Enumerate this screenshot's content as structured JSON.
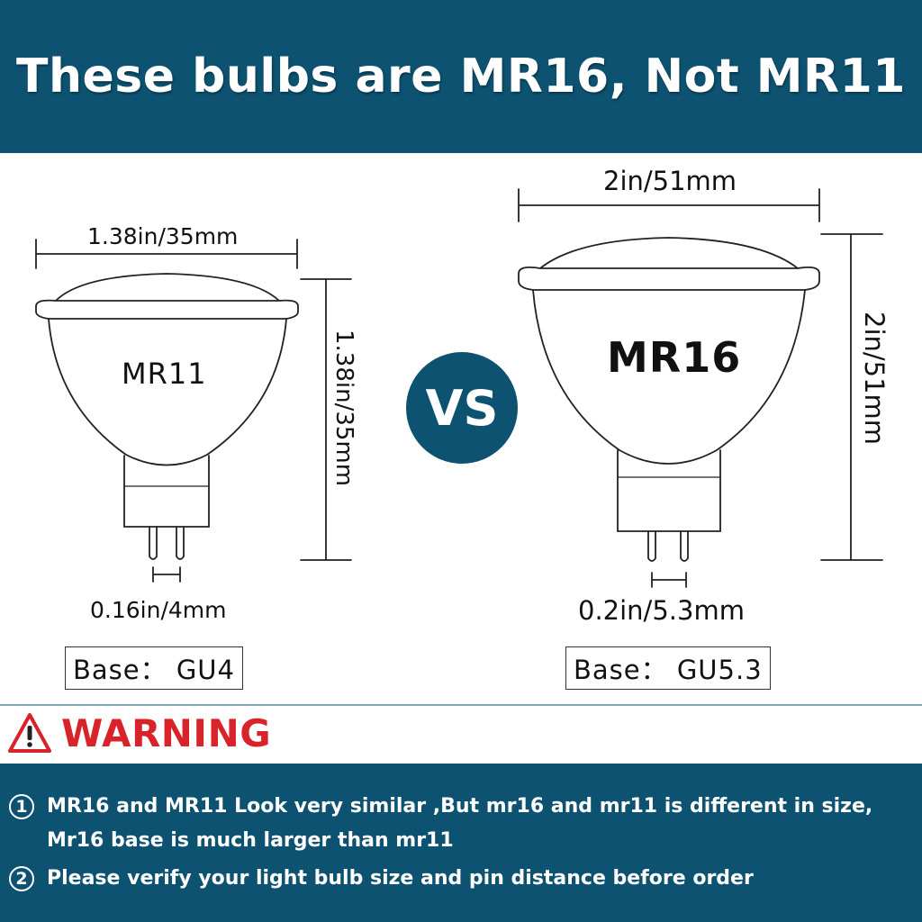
{
  "header": {
    "title": "These bulbs are MR16, Not MR11"
  },
  "mr11": {
    "label": "MR11",
    "width_label": "1.38in/35mm",
    "height_label": "1.38in/35mm",
    "pin_label": "0.16in/4mm",
    "base_label": "Base： GU4"
  },
  "vs_label": "VS",
  "mr16": {
    "label": "MR16",
    "width_label": "2in/51mm",
    "height_label": "2in/51mm",
    "pin_label": "0.2in/5.3mm",
    "base_label": "Base： GU5.3"
  },
  "warning": {
    "label": "WARNING",
    "icon": "warning-triangle-icon"
  },
  "notes": [
    {
      "number": "1",
      "lines": [
        "MR16 and MR11 Look very similar ,But mr16 and mr11 is different in size,",
        "Mr16 base is much larger  than mr11"
      ]
    },
    {
      "number": "2",
      "lines": [
        "Please verify your light bulb size and pin distance before order"
      ]
    }
  ],
  "colors": {
    "brand": "#0d5271",
    "warning": "#d9232b"
  }
}
